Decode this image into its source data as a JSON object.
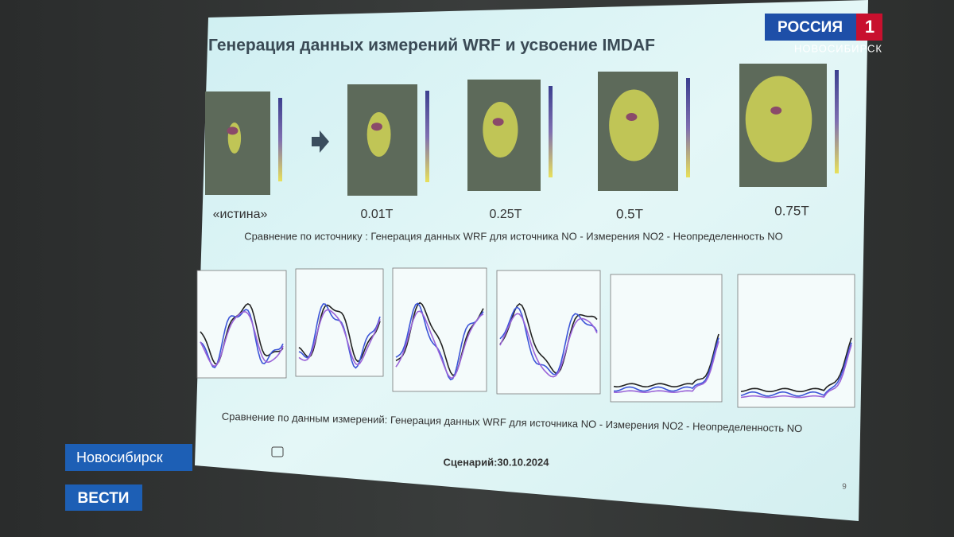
{
  "slide": {
    "title": "Генерация данных измерений WRF и усвоение IMDAF",
    "map_labels": [
      "«истина»",
      "0.01T",
      "0.25T",
      "0.5T",
      "0.75T"
    ],
    "caption_source": "Сравнение по источнику : Генерация данных WRF для источника NO - Измерения NO2 - Неопределенность NO",
    "caption_measurements": "Сравнение по данным измерений: Генерация данных WRF для источника NO - Измерения NO2 - Неопределенность NO",
    "scenario": "Сценарий:30.10.2024",
    "page_number": "9"
  },
  "broadcast": {
    "channel": "РОССИЯ",
    "channel_number": "1",
    "region": "НОВОСИБИРСК",
    "location": "Новосибирск",
    "program": "ВЕСТИ"
  }
}
